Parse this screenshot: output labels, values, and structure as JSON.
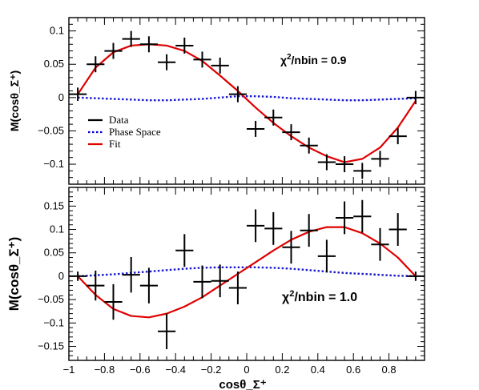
{
  "chart_data": [
    {
      "type": "scatter",
      "panel": "top",
      "ylabel": "M(cosθ_Σ⁺)",
      "xlim": [
        -1,
        1
      ],
      "ylim": [
        -0.13,
        0.12
      ],
      "yticks": [
        0.1,
        0.05,
        0,
        -0.05,
        -0.1
      ],
      "ytick_labels": [
        "0.1",
        "0.05",
        "0",
        "−0.05",
        "−0.1"
      ],
      "annotation": {
        "prefix": "χ",
        "sup": "2",
        "suffix": "/nbin = 0.9"
      },
      "legend": {
        "placement": "left",
        "entries": [
          {
            "name": "Data",
            "color": "#000000",
            "style": "solid"
          },
          {
            "name": "Phase Space",
            "color": "#0000cc",
            "style": "dotted"
          },
          {
            "name": "Fit",
            "color": "#e00000",
            "style": "solid"
          }
        ]
      },
      "data": {
        "x": [
          -0.95,
          -0.85,
          -0.75,
          -0.65,
          -0.55,
          -0.45,
          -0.35,
          -0.25,
          -0.15,
          -0.05,
          0.05,
          0.15,
          0.25,
          0.35,
          0.45,
          0.55,
          0.65,
          0.75,
          0.85,
          0.95
        ],
        "y": [
          0.005,
          0.05,
          0.07,
          0.088,
          0.08,
          0.053,
          0.078,
          0.057,
          0.048,
          0.005,
          -0.047,
          -0.03,
          -0.052,
          -0.072,
          -0.097,
          -0.1,
          -0.11,
          -0.092,
          -0.058,
          0.0
        ],
        "yerr": [
          0.01,
          0.012,
          0.012,
          0.012,
          0.012,
          0.012,
          0.012,
          0.012,
          0.012,
          0.012,
          0.012,
          0.012,
          0.012,
          0.012,
          0.012,
          0.012,
          0.012,
          0.012,
          0.012,
          0.01
        ]
      },
      "fit": {
        "x": [
          -0.95,
          -0.85,
          -0.75,
          -0.65,
          -0.55,
          -0.45,
          -0.35,
          -0.25,
          -0.15,
          -0.05,
          0.05,
          0.15,
          0.25,
          0.35,
          0.45,
          0.55,
          0.65,
          0.75,
          0.85,
          0.95
        ],
        "y": [
          0.005,
          0.045,
          0.068,
          0.078,
          0.08,
          0.078,
          0.07,
          0.055,
          0.033,
          0.01,
          -0.015,
          -0.038,
          -0.058,
          -0.075,
          -0.088,
          -0.097,
          -0.092,
          -0.075,
          -0.045,
          -0.005
        ]
      },
      "phase_space": {
        "x": [
          -0.95,
          -0.85,
          -0.75,
          -0.65,
          -0.55,
          -0.45,
          -0.35,
          -0.25,
          -0.15,
          -0.05,
          0.05,
          0.15,
          0.25,
          0.35,
          0.45,
          0.55,
          0.65,
          0.75,
          0.85,
          0.95
        ],
        "y": [
          0,
          -0.001,
          -0.002,
          -0.003,
          -0.004,
          -0.004,
          -0.003,
          -0.002,
          0.0,
          0.002,
          0.002,
          0.001,
          -0.001,
          -0.002,
          -0.003,
          -0.004,
          -0.004,
          -0.003,
          -0.002,
          -0.001
        ]
      }
    },
    {
      "type": "scatter",
      "panel": "bottom",
      "xlabel": "cosθ_Σ⁺",
      "ylabel": "M(cosθ_Σ⁺)",
      "xlim": [
        -1,
        1
      ],
      "ylim": [
        -0.18,
        0.19
      ],
      "xticks": [
        -1,
        -0.8,
        -0.6,
        -0.4,
        -0.2,
        0,
        0.2,
        0.4,
        0.6,
        0.8
      ],
      "xtick_labels": [
        "−1",
        "−0.8",
        "−0.6",
        "−0.4",
        "−0.2",
        "0",
        "0.2",
        "0.4",
        "0.6",
        "0.8"
      ],
      "yticks": [
        0.15,
        0.1,
        0.05,
        0,
        -0.05,
        -0.1,
        -0.15
      ],
      "ytick_labels": [
        "0.15",
        "0.1",
        "0.05",
        "0",
        "−0.05",
        "−0.1",
        "−0.15"
      ],
      "annotation": {
        "prefix": "χ",
        "sup": "2",
        "suffix": "/nbin = 1.0"
      },
      "data": {
        "x": [
          -0.95,
          -0.85,
          -0.75,
          -0.65,
          -0.55,
          -0.45,
          -0.35,
          -0.25,
          -0.15,
          -0.05,
          0.05,
          0.15,
          0.25,
          0.35,
          0.45,
          0.55,
          0.65,
          0.75,
          0.85,
          0.95
        ],
        "y": [
          0.0,
          -0.02,
          -0.055,
          0.003,
          -0.02,
          -0.118,
          0.055,
          -0.012,
          -0.01,
          -0.025,
          0.108,
          0.102,
          0.062,
          0.098,
          0.043,
          0.125,
          0.128,
          0.068,
          0.1,
          0.0
        ],
        "yerr": [
          0.01,
          0.032,
          0.038,
          0.038,
          0.038,
          0.038,
          0.035,
          0.035,
          0.035,
          0.035,
          0.035,
          0.035,
          0.035,
          0.035,
          0.035,
          0.035,
          0.035,
          0.035,
          0.035,
          0.01
        ]
      },
      "fit": {
        "x": [
          -0.95,
          -0.85,
          -0.75,
          -0.65,
          -0.55,
          -0.45,
          -0.35,
          -0.25,
          -0.15,
          -0.05,
          0.05,
          0.15,
          0.25,
          0.35,
          0.45,
          0.55,
          0.65,
          0.75,
          0.85,
          0.95
        ],
        "y": [
          0.0,
          -0.04,
          -0.07,
          -0.085,
          -0.088,
          -0.08,
          -0.065,
          -0.045,
          -0.02,
          0.005,
          0.03,
          0.055,
          0.078,
          0.095,
          0.105,
          0.105,
          0.092,
          0.07,
          0.04,
          0.0
        ]
      },
      "phase_space": {
        "x": [
          -0.95,
          -0.85,
          -0.75,
          -0.65,
          -0.55,
          -0.45,
          -0.35,
          -0.25,
          -0.15,
          -0.05,
          0.05,
          0.15,
          0.25,
          0.35,
          0.45,
          0.55,
          0.65,
          0.75,
          0.85,
          0.95
        ],
        "y": [
          0,
          0.002,
          0.004,
          0.007,
          0.01,
          0.013,
          0.016,
          0.018,
          0.019,
          0.019,
          0.019,
          0.018,
          0.016,
          0.013,
          0.01,
          0.007,
          0.005,
          0.003,
          0.001,
          0
        ]
      }
    }
  ]
}
